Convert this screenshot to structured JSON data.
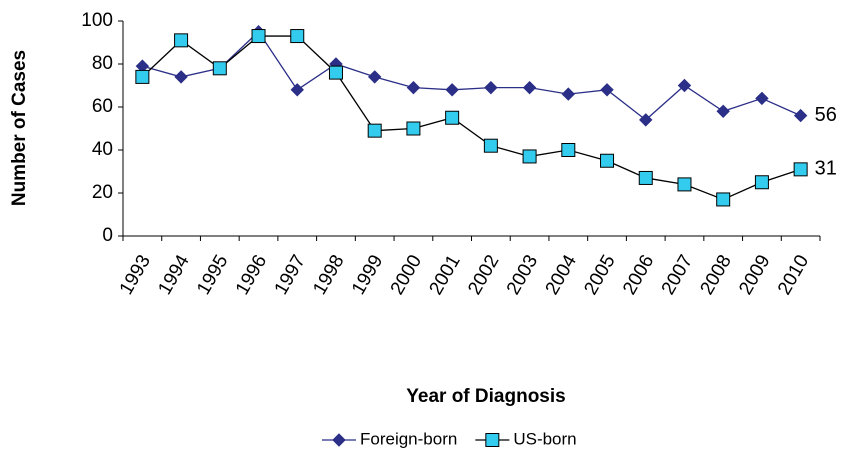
{
  "chart_data": {
    "type": "line",
    "x_label": "Year of Diagnosis",
    "y_label": "Number of Cases",
    "categories": [
      "1993",
      "1994",
      "1995",
      "1996",
      "1997",
      "1998",
      "1999",
      "2000",
      "2001",
      "2002",
      "2003",
      "2004",
      "2005",
      "2006",
      "2007",
      "2008",
      "2009",
      "2010"
    ],
    "series": [
      {
        "name": "Foreign-born",
        "color": "#2b2f87",
        "marker": "diamond",
        "values": [
          79,
          74,
          78,
          95,
          68,
          80,
          74,
          69,
          68,
          69,
          69,
          66,
          68,
          54,
          70,
          58,
          64,
          56
        ]
      },
      {
        "name": "US-born",
        "color": "#33ccee",
        "marker": "square",
        "values": [
          74,
          91,
          78,
          93,
          93,
          76,
          49,
          50,
          55,
          42,
          37,
          40,
          35,
          27,
          24,
          17,
          25,
          31
        ]
      }
    ],
    "ylim": [
      0,
      100
    ],
    "yticks": [
      0,
      20,
      40,
      60,
      80,
      100
    ],
    "legend": "bottom",
    "grid": false
  }
}
